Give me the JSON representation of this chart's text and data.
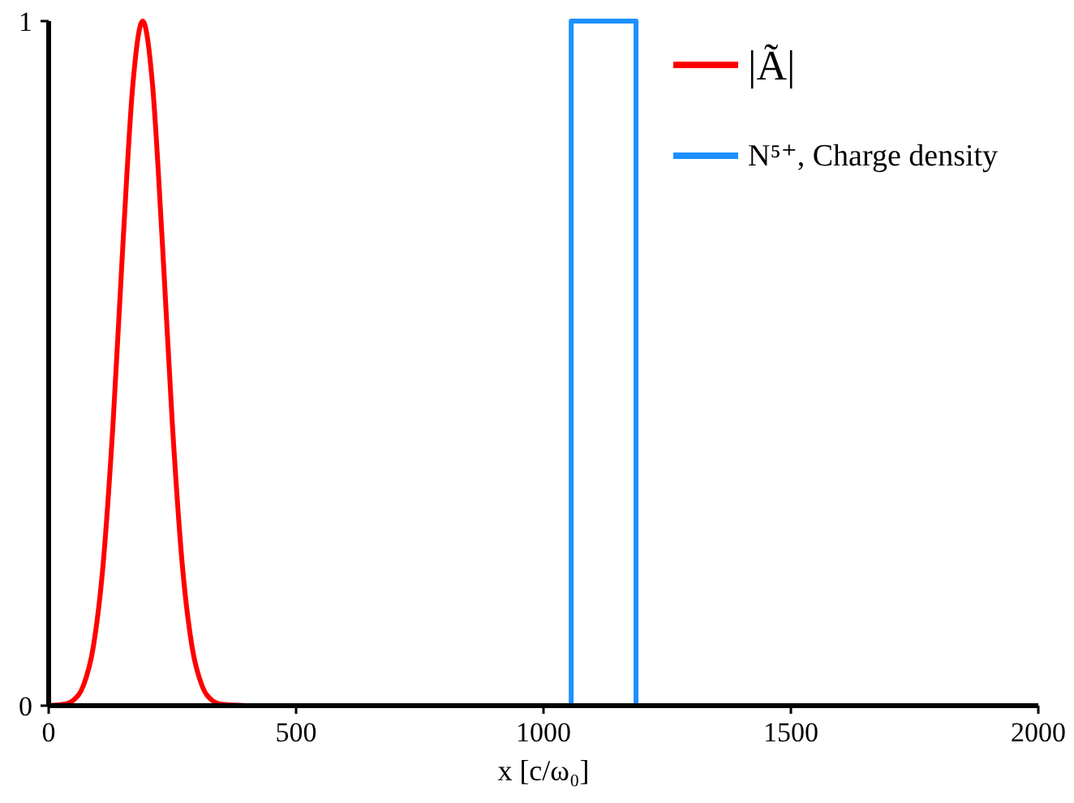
{
  "chart_data": {
    "type": "line",
    "xlabel": "x [c/ω₀]",
    "xlim": [
      0,
      2000
    ],
    "xticks": [
      0,
      500,
      1000,
      1500,
      2000
    ],
    "ylim": [
      0,
      1
    ],
    "yticks": [
      0,
      1
    ],
    "grid": false,
    "legend": "top right",
    "marker": "none",
    "line_style": "solid",
    "series": [
      {
        "name": "|Ã|",
        "color": "#ff0000",
        "x": [
          0,
          30,
          50,
          70,
          90,
          110,
          130,
          150,
          170,
          190,
          210,
          230,
          250,
          270,
          290,
          310,
          330,
          350,
          400
        ],
        "values": [
          0,
          0.002,
          0.008,
          0.029,
          0.085,
          0.206,
          0.411,
          0.673,
          0.906,
          1,
          0.906,
          0.673,
          0.411,
          0.206,
          0.085,
          0.029,
          0.008,
          0.002,
          0
        ]
      },
      {
        "name": "N⁵⁺, Charge density",
        "color": "#1e90ff",
        "x": [
          0,
          1056,
          1056,
          1187,
          1187,
          2000
        ],
        "values": [
          0,
          0,
          1,
          1,
          0,
          0
        ]
      }
    ]
  }
}
